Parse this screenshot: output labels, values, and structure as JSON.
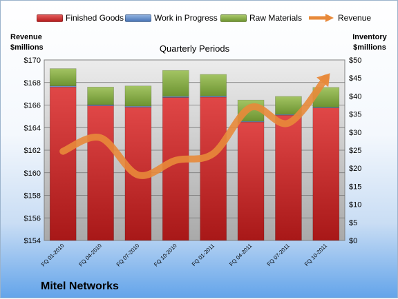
{
  "chart_data": {
    "type": "bar",
    "subtitle": "Quarterly Periods",
    "categories": [
      "FQ 01-2010",
      "FQ 04-2010",
      "FQ 07-2010",
      "FQ 10-2010",
      "FQ 01-2011",
      "FQ 04-2011",
      "FQ 07-2011",
      "FQ 10-2011"
    ],
    "stacked": true,
    "series": [
      {
        "name": "Finished Goods",
        "type": "bar",
        "axis": "right",
        "color": "#cc2a2a",
        "values": [
          42.5,
          37.3,
          36.9,
          39.6,
          39.7,
          32.8,
          34.7,
          36.7
        ]
      },
      {
        "name": "Work in Progress",
        "type": "bar",
        "axis": "right",
        "color": "#5b87c5",
        "values": [
          0.3,
          0.3,
          0.3,
          0.3,
          0.3,
          0.2,
          0.2,
          0.2
        ]
      },
      {
        "name": "Raw Materials",
        "type": "bar",
        "axis": "right",
        "color": "#8fb24c",
        "values": [
          4.8,
          4.9,
          5.6,
          7.2,
          6.0,
          5.9,
          5.0,
          5.5
        ]
      },
      {
        "name": "Revenue",
        "type": "line",
        "axis": "left",
        "color": "#e8893a",
        "values": [
          161.9,
          163.1,
          159.8,
          161.1,
          161.7,
          165.8,
          164.4,
          168.4
        ]
      }
    ],
    "ylabel_left": [
      "Revenue",
      "$millions"
    ],
    "ylabel_right": [
      "Inventory",
      "$millions"
    ],
    "ylim_left": [
      154,
      170
    ],
    "ylim_right": [
      0,
      50
    ],
    "yticks_left": [
      "$154",
      "$156",
      "$158",
      "$160",
      "$162",
      "$164",
      "$166",
      "$168",
      "$170"
    ],
    "yticks_right": [
      "$0",
      "$5",
      "$10",
      "$15",
      "$20",
      "$25",
      "$30",
      "$35",
      "$40",
      "$45",
      "$50"
    ],
    "grid": true,
    "legend_position": "top"
  },
  "brand": "Mitel Networks"
}
